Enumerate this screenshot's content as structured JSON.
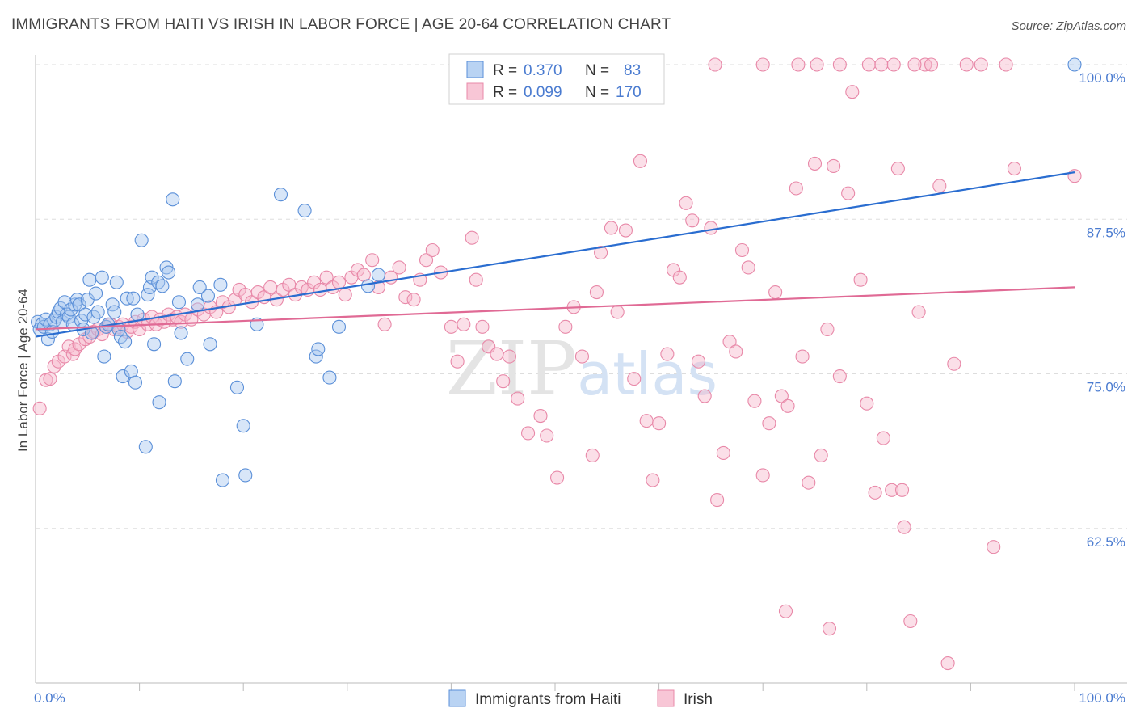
{
  "header": {
    "title": "IMMIGRANTS FROM HAITI VS IRISH IN LABOR FORCE | AGE 20-64 CORRELATION CHART",
    "source": "Source: ZipAtlas.com"
  },
  "colors": {
    "haiti_fill": "#a8c8f0",
    "haiti_stroke": "#5a8fd8",
    "haiti_line": "#2a6dd0",
    "irish_fill": "#f6b8cc",
    "irish_stroke": "#e888a8",
    "irish_line": "#e06a95",
    "tick_text": "#4a7bd0",
    "grid": "#dddddd"
  },
  "legend": {
    "rows": [
      {
        "r_label": "R =",
        "r_value": "0.370",
        "n_label": "N =",
        "n_value": "83"
      },
      {
        "r_label": "R =",
        "r_value": "0.099",
        "n_label": "N =",
        "n_value": "170"
      }
    ]
  },
  "chart_data": {
    "type": "scatter",
    "title": "IMMIGRANTS FROM HAITI VS IRISH IN LABOR FORCE | AGE 20-64 CORRELATION CHART",
    "xlabel": "",
    "ylabel": "In Labor Force | Age 20-64",
    "xlim": [
      0,
      100
    ],
    "ylim": [
      50,
      100
    ],
    "x_tick_labels": [
      "0.0%",
      "100.0%"
    ],
    "y_ticks": [
      62.5,
      75.0,
      87.5,
      100.0
    ],
    "y_tick_labels": [
      "62.5%",
      "75.0%",
      "87.5%",
      "100.0%"
    ],
    "watermark": "ZIPatlas",
    "series": [
      {
        "name": "Immigrants from Haiti",
        "r": 0.37,
        "n": 83,
        "trend": [
          [
            0,
            78.0
          ],
          [
            100,
            91.3
          ]
        ],
        "points": [
          [
            0.2,
            79.2
          ],
          [
            0.4,
            78.6
          ],
          [
            0.6,
            79.0
          ],
          [
            0.8,
            78.8
          ],
          [
            1.0,
            79.4
          ],
          [
            1.2,
            77.8
          ],
          [
            1.4,
            79.0
          ],
          [
            1.6,
            78.4
          ],
          [
            1.8,
            79.3
          ],
          [
            2.0,
            79.6
          ],
          [
            2.2,
            80.0
          ],
          [
            2.4,
            80.3
          ],
          [
            2.6,
            79.2
          ],
          [
            2.8,
            80.8
          ],
          [
            3.0,
            79.8
          ],
          [
            3.2,
            79.6
          ],
          [
            3.4,
            80.2
          ],
          [
            3.6,
            79.0
          ],
          [
            3.8,
            80.6
          ],
          [
            4.0,
            81.0
          ],
          [
            4.2,
            80.6
          ],
          [
            4.4,
            79.3
          ],
          [
            4.6,
            78.6
          ],
          [
            4.8,
            79.8
          ],
          [
            5.0,
            81.0
          ],
          [
            5.2,
            82.6
          ],
          [
            5.4,
            78.3
          ],
          [
            5.6,
            79.6
          ],
          [
            5.8,
            81.5
          ],
          [
            6.0,
            80.0
          ],
          [
            6.4,
            82.8
          ],
          [
            6.6,
            76.4
          ],
          [
            6.8,
            78.8
          ],
          [
            7.0,
            79.0
          ],
          [
            7.4,
            80.6
          ],
          [
            7.6,
            80.0
          ],
          [
            7.8,
            82.4
          ],
          [
            8.0,
            78.6
          ],
          [
            8.2,
            78.0
          ],
          [
            8.4,
            74.8
          ],
          [
            8.6,
            77.6
          ],
          [
            8.8,
            81.1
          ],
          [
            9.2,
            75.2
          ],
          [
            9.4,
            81.1
          ],
          [
            9.6,
            74.3
          ],
          [
            9.8,
            79.8
          ],
          [
            10.2,
            85.8
          ],
          [
            10.6,
            69.1
          ],
          [
            10.8,
            81.4
          ],
          [
            11.0,
            82.0
          ],
          [
            11.2,
            82.8
          ],
          [
            11.4,
            77.4
          ],
          [
            11.8,
            82.4
          ],
          [
            11.9,
            72.7
          ],
          [
            12.2,
            82.1
          ],
          [
            12.6,
            83.6
          ],
          [
            12.8,
            83.2
          ],
          [
            13.2,
            89.1
          ],
          [
            13.4,
            74.4
          ],
          [
            13.8,
            80.8
          ],
          [
            14.0,
            78.3
          ],
          [
            14.6,
            76.2
          ],
          [
            15.6,
            80.6
          ],
          [
            15.8,
            82.0
          ],
          [
            16.6,
            81.3
          ],
          [
            16.8,
            77.4
          ],
          [
            17.8,
            82.2
          ],
          [
            18.0,
            66.4
          ],
          [
            19.4,
            73.9
          ],
          [
            20.0,
            70.8
          ],
          [
            20.2,
            66.8
          ],
          [
            21.3,
            79.0
          ],
          [
            23.6,
            89.5
          ],
          [
            25.9,
            88.2
          ],
          [
            27.0,
            76.4
          ],
          [
            27.2,
            77.0
          ],
          [
            28.3,
            74.7
          ],
          [
            29.2,
            78.8
          ],
          [
            32.0,
            82.1
          ],
          [
            33.0,
            83.0
          ],
          [
            100.0,
            100.0
          ]
        ]
      },
      {
        "name": "Irish",
        "r": 0.099,
        "n": 170,
        "trend": [
          [
            0,
            78.6
          ],
          [
            100,
            82.0
          ]
        ],
        "points": [
          [
            0.4,
            72.2
          ],
          [
            1.0,
            74.5
          ],
          [
            1.4,
            74.6
          ],
          [
            1.8,
            75.6
          ],
          [
            2.2,
            76.0
          ],
          [
            2.8,
            76.4
          ],
          [
            3.2,
            77.2
          ],
          [
            3.6,
            76.6
          ],
          [
            3.8,
            77.0
          ],
          [
            4.2,
            77.4
          ],
          [
            4.8,
            77.8
          ],
          [
            5.2,
            78.0
          ],
          [
            5.6,
            78.4
          ],
          [
            6.0,
            78.6
          ],
          [
            6.4,
            78.2
          ],
          [
            6.8,
            78.8
          ],
          [
            7.2,
            79.0
          ],
          [
            7.6,
            78.6
          ],
          [
            8.0,
            78.8
          ],
          [
            8.4,
            79.0
          ],
          [
            8.8,
            78.4
          ],
          [
            9.2,
            78.8
          ],
          [
            9.6,
            79.2
          ],
          [
            10.0,
            78.6
          ],
          [
            10.4,
            79.4
          ],
          [
            10.8,
            79.0
          ],
          [
            11.2,
            79.6
          ],
          [
            11.6,
            79.0
          ],
          [
            12.0,
            79.4
          ],
          [
            12.4,
            79.2
          ],
          [
            12.8,
            79.8
          ],
          [
            13.2,
            79.4
          ],
          [
            13.6,
            79.6
          ],
          [
            14.0,
            79.2
          ],
          [
            14.4,
            79.8
          ],
          [
            15.0,
            79.4
          ],
          [
            15.6,
            80.2
          ],
          [
            16.2,
            79.8
          ],
          [
            16.8,
            80.4
          ],
          [
            17.4,
            80.0
          ],
          [
            18.0,
            80.8
          ],
          [
            18.6,
            80.4
          ],
          [
            19.2,
            81.0
          ],
          [
            19.6,
            81.8
          ],
          [
            20.2,
            81.4
          ],
          [
            20.8,
            80.8
          ],
          [
            21.4,
            81.6
          ],
          [
            22.0,
            81.2
          ],
          [
            22.6,
            82.0
          ],
          [
            23.2,
            81.0
          ],
          [
            23.8,
            81.8
          ],
          [
            24.4,
            82.2
          ],
          [
            25.0,
            81.4
          ],
          [
            25.6,
            82.0
          ],
          [
            26.2,
            81.8
          ],
          [
            26.8,
            82.4
          ],
          [
            27.4,
            81.8
          ],
          [
            28.0,
            82.8
          ],
          [
            28.6,
            82.0
          ],
          [
            29.2,
            82.4
          ],
          [
            29.8,
            81.4
          ],
          [
            30.4,
            82.8
          ],
          [
            31.0,
            83.4
          ],
          [
            31.6,
            83.0
          ],
          [
            32.4,
            84.2
          ],
          [
            33.0,
            82.0
          ],
          [
            33.6,
            79.0
          ],
          [
            34.2,
            82.8
          ],
          [
            35.0,
            83.6
          ],
          [
            35.6,
            81.2
          ],
          [
            36.4,
            81.0
          ],
          [
            37.0,
            82.6
          ],
          [
            37.6,
            84.2
          ],
          [
            38.2,
            85.0
          ],
          [
            39.0,
            83.2
          ],
          [
            40.0,
            78.8
          ],
          [
            40.6,
            76.0
          ],
          [
            41.2,
            79.0
          ],
          [
            42.0,
            86.0
          ],
          [
            42.4,
            82.6
          ],
          [
            43.0,
            78.8
          ],
          [
            43.6,
            77.2
          ],
          [
            44.4,
            76.6
          ],
          [
            45.0,
            74.4
          ],
          [
            45.6,
            76.4
          ],
          [
            46.4,
            73.0
          ],
          [
            47.4,
            70.2
          ],
          [
            48.6,
            71.6
          ],
          [
            49.2,
            70.0
          ],
          [
            50.2,
            66.6
          ],
          [
            51.0,
            78.8
          ],
          [
            51.8,
            80.4
          ],
          [
            52.6,
            76.4
          ],
          [
            53.6,
            68.4
          ],
          [
            54.0,
            81.6
          ],
          [
            54.4,
            84.8
          ],
          [
            55.4,
            86.8
          ],
          [
            56.0,
            80.0
          ],
          [
            56.8,
            86.6
          ],
          [
            57.6,
            74.6
          ],
          [
            58.2,
            92.2
          ],
          [
            58.8,
            71.2
          ],
          [
            59.4,
            66.4
          ],
          [
            60.0,
            71.0
          ],
          [
            60.8,
            76.6
          ],
          [
            61.4,
            83.4
          ],
          [
            62.0,
            82.8
          ],
          [
            62.6,
            88.8
          ],
          [
            63.2,
            87.4
          ],
          [
            63.8,
            76.0
          ],
          [
            64.4,
            73.2
          ],
          [
            65.0,
            86.8
          ],
          [
            65.6,
            64.8
          ],
          [
            66.2,
            68.6
          ],
          [
            66.8,
            77.6
          ],
          [
            67.4,
            76.8
          ],
          [
            68.0,
            85.0
          ],
          [
            68.6,
            83.6
          ],
          [
            69.2,
            72.8
          ],
          [
            70.0,
            66.8
          ],
          [
            70.6,
            71.0
          ],
          [
            71.2,
            81.6
          ],
          [
            71.8,
            73.2
          ],
          [
            72.4,
            72.4
          ],
          [
            73.2,
            90.0
          ],
          [
            73.8,
            76.4
          ],
          [
            74.4,
            66.2
          ],
          [
            75.0,
            92.0
          ],
          [
            75.6,
            68.4
          ],
          [
            76.2,
            78.6
          ],
          [
            76.8,
            91.8
          ],
          [
            77.4,
            74.8
          ],
          [
            78.2,
            89.6
          ],
          [
            78.6,
            97.8
          ],
          [
            79.4,
            82.6
          ],
          [
            80.0,
            72.6
          ],
          [
            80.8,
            65.4
          ],
          [
            81.6,
            69.8
          ],
          [
            82.4,
            65.6
          ],
          [
            83.0,
            91.6
          ],
          [
            83.6,
            62.6
          ],
          [
            84.2,
            55.0
          ],
          [
            85.0,
            80.0
          ],
          [
            85.6,
            100.0
          ],
          [
            86.2,
            100.0
          ],
          [
            87.0,
            90.2
          ],
          [
            87.8,
            51.6
          ],
          [
            88.4,
            75.8
          ],
          [
            89.6,
            100.0
          ],
          [
            91.0,
            100.0
          ],
          [
            92.2,
            61.0
          ],
          [
            93.4,
            100.0
          ],
          [
            94.2,
            91.6
          ],
          [
            100.0,
            91.0
          ],
          [
            65.4,
            100.0
          ],
          [
            70.0,
            100.0
          ],
          [
            73.4,
            100.0
          ],
          [
            75.2,
            100.0
          ],
          [
            77.4,
            100.0
          ],
          [
            80.2,
            100.0
          ],
          [
            81.4,
            100.0
          ],
          [
            82.6,
            100.0
          ],
          [
            84.6,
            100.0
          ],
          [
            83.4,
            65.6
          ],
          [
            72.2,
            55.8
          ],
          [
            76.4,
            54.4
          ],
          [
            58.4,
            100.0
          ]
        ]
      }
    ]
  }
}
